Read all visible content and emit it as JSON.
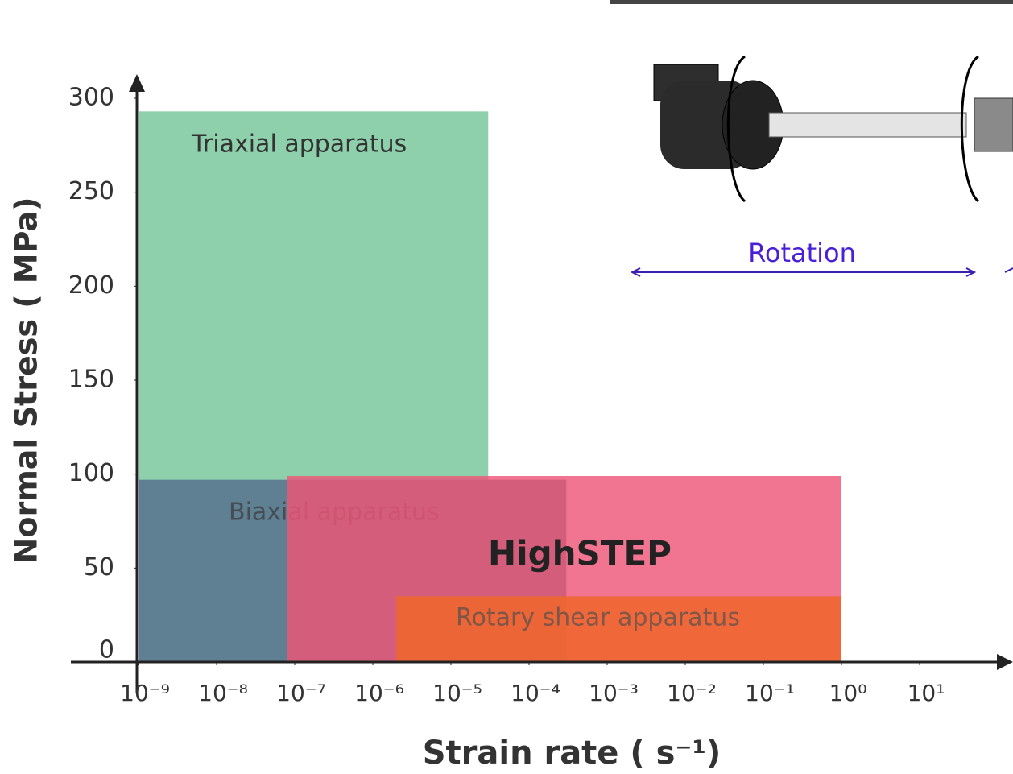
{
  "chart_data": {
    "type": "range",
    "xlabel": "Strain rate ( s⁻¹)",
    "ylabel": "Normal Stress ( MPa)",
    "xscale": "log",
    "xlim": [
      1e-09,
      100.0
    ],
    "ylim": [
      0,
      300
    ],
    "xticks": [
      {
        "value": 1e-09,
        "label": "10⁻⁹"
      },
      {
        "value": 1e-08,
        "label": "10⁻⁸"
      },
      {
        "value": 1e-07,
        "label": "10⁻⁷"
      },
      {
        "value": 1e-06,
        "label": "10⁻⁶"
      },
      {
        "value": 1e-05,
        "label": "10⁻⁵"
      },
      {
        "value": 0.0001,
        "label": "10⁻⁴"
      },
      {
        "value": 0.001,
        "label": "10⁻³"
      },
      {
        "value": 0.01,
        "label": "10⁻²"
      },
      {
        "value": 0.1,
        "label": "10⁻¹"
      },
      {
        "value": 1,
        "label": "10⁰"
      },
      {
        "value": 10,
        "label": "10¹"
      }
    ],
    "yticks": [
      0,
      50,
      100,
      150,
      200,
      250,
      300
    ],
    "series": [
      {
        "name": "Triaxial apparatus",
        "color": "#8fd0ac",
        "x": [
          1e-09,
          3e-05
        ],
        "values": [
          0,
          293
        ]
      },
      {
        "name": "Biaxial apparatus",
        "color": "#5f7f93",
        "x": [
          1e-09,
          0.0003
        ],
        "values": [
          0,
          97
        ]
      },
      {
        "name": "HighSTEP",
        "color": "#ee5577",
        "x": [
          8e-08,
          1
        ],
        "values": [
          0,
          99
        ]
      },
      {
        "name": "Rotary shear apparatus",
        "color": "#f0662a",
        "x": [
          2e-06,
          1
        ],
        "values": [
          0,
          35
        ]
      }
    ],
    "annotations": [
      "Rotation"
    ]
  }
}
